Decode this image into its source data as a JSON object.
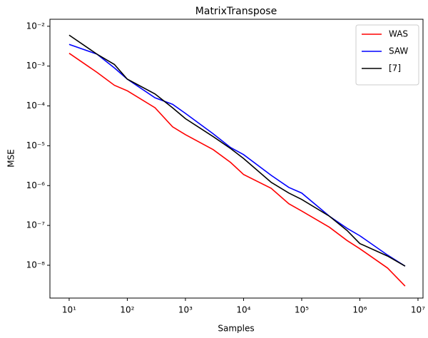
{
  "chart_data": {
    "type": "line",
    "title": "MatrixTranspose",
    "x_label": "Samples",
    "y_label": "MSE",
    "x": [
      10,
      30,
      60,
      100,
      300,
      600,
      1000,
      3000,
      6000,
      10000,
      30000,
      60000,
      100000,
      300000,
      600000,
      1000000,
      3000000,
      6000000
    ],
    "series": [
      {
        "name": "WAS",
        "color": "#ff0000",
        "values": [
          0.0021,
          0.0007,
          0.00033,
          0.00024,
          9e-05,
          3e-05,
          1.9e-05,
          8e-06,
          3.8e-06,
          1.9e-06,
          8.5e-07,
          3.5e-07,
          2.3e-07,
          9e-08,
          4.2e-08,
          2.6e-08,
          8.5e-09,
          3e-09
        ]
      },
      {
        "name": "SAW",
        "color": "#0000ff",
        "values": [
          0.0035,
          0.002,
          0.0009,
          0.00047,
          0.00016,
          0.00011,
          6.5e-05,
          2e-05,
          9e-06,
          6e-06,
          1.8e-06,
          9e-07,
          6.5e-07,
          1.7e-07,
          8.5e-08,
          5.5e-08,
          1.8e-08,
          9.5e-09
        ]
      },
      {
        "name": "[7]",
        "color": "#000000",
        "values": [
          0.006,
          0.002,
          0.0011,
          0.00047,
          0.0002,
          9e-05,
          4.8e-05,
          1.7e-05,
          8.5e-06,
          4.8e-06,
          1.2e-06,
          6.5e-07,
          4.5e-07,
          1.7e-07,
          7.5e-08,
          3.5e-08,
          1.7e-08,
          9.5e-09
        ]
      }
    ],
    "xlog": true,
    "ylog": true,
    "xlim": [
      4.67,
      12200000
    ],
    "ylim": [
      1.5e-09,
      0.015
    ],
    "xticks": [
      {
        "value": 10,
        "label": "10¹"
      },
      {
        "value": 100,
        "label": "10²"
      },
      {
        "value": 1000,
        "label": "10³"
      },
      {
        "value": 10000,
        "label": "10⁴"
      },
      {
        "value": 100000,
        "label": "10⁵"
      },
      {
        "value": 1000000,
        "label": "10⁶"
      },
      {
        "value": 10000000,
        "label": "10⁷"
      }
    ],
    "yticks": [
      {
        "value": 1e-08,
        "label": "10⁻⁸"
      },
      {
        "value": 1e-07,
        "label": "10⁻⁷"
      },
      {
        "value": 1e-06,
        "label": "10⁻⁶"
      },
      {
        "value": 1e-05,
        "label": "10⁻⁵"
      },
      {
        "value": 0.0001,
        "label": "10⁻⁴"
      },
      {
        "value": 0.001,
        "label": "10⁻³"
      },
      {
        "value": 0.01,
        "label": "10⁻²"
      }
    ],
    "grid": false,
    "legend": "upper right"
  }
}
